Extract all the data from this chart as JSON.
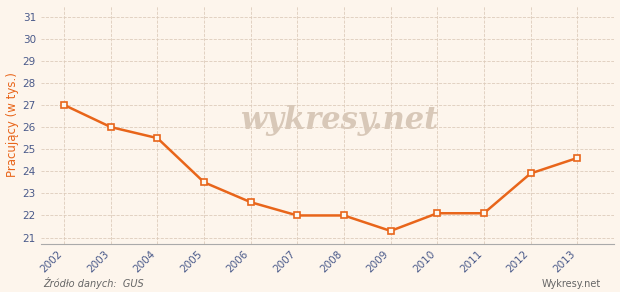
{
  "years": [
    2002,
    2003,
    2004,
    2005,
    2006,
    2007,
    2008,
    2009,
    2010,
    2011,
    2012,
    2013
  ],
  "values": [
    27.0,
    26.0,
    25.5,
    23.5,
    22.6,
    22.0,
    22.0,
    21.3,
    22.1,
    22.1,
    23.9,
    24.6
  ],
  "line_color": "#E8651A",
  "marker_style": "s",
  "marker_size": 4,
  "marker_color": "#E8651A",
  "marker_facecolor": "#FDF8F0",
  "bg_color": "#FDF5EC",
  "grid_color": "#DDCCBB",
  "ylabel": "Pracujący (w tys.)",
  "ylabel_color": "#E8651A",
  "tick_color": "#4A5A8A",
  "ytick_min": 21,
  "ytick_max": 31,
  "ytick_step": 1,
  "source_text": "Źródło danych:  GUS",
  "watermark_text": "wykresy.net",
  "watermark_color": "#D8C8B8",
  "source_color": "#666666",
  "brand_text": "Wykresy.net",
  "brand_color": "#666666",
  "xlim_left": 2001.5,
  "xlim_right": 2013.8
}
